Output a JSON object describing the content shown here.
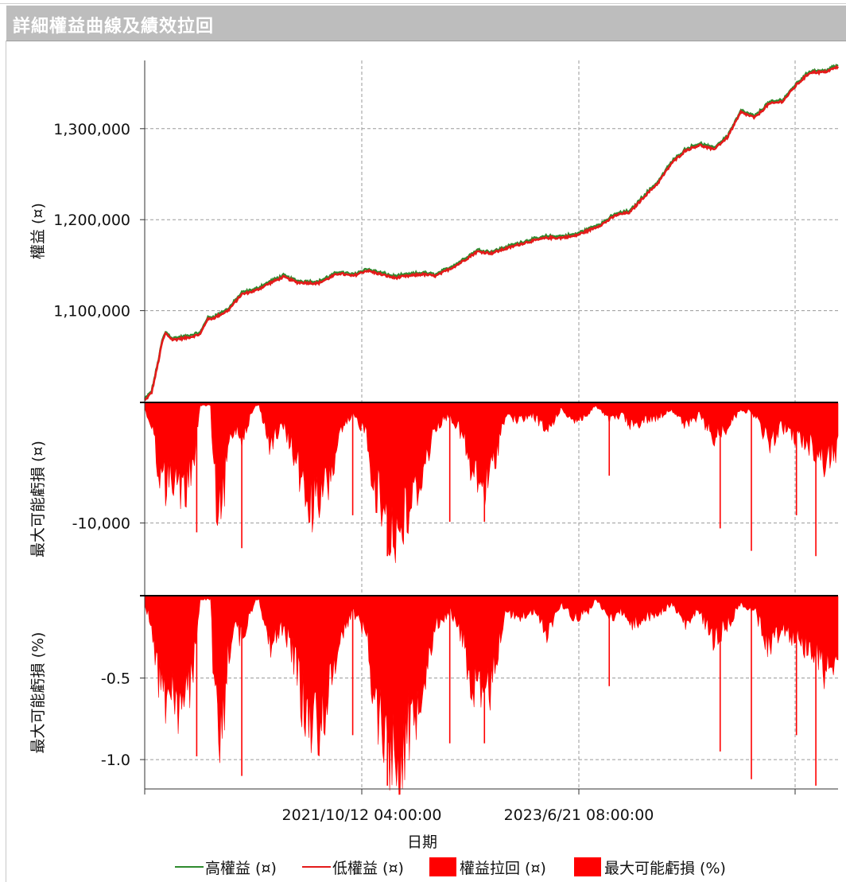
{
  "window": {
    "title": "詳細權益曲線及績效拉回"
  },
  "chart_data": {
    "type": "line",
    "xlabel": "日期",
    "x_ticks": [
      "2021/10/12 04:00:00",
      "2023/6/21 08:00:00"
    ],
    "panels": [
      {
        "id": "equity",
        "type": "line",
        "ylabel": "權益 (¤)",
        "yticks": [
          "1,100,000",
          "1,200,000",
          "1,300,000"
        ],
        "ytick_values": [
          1100000,
          1200000,
          1300000
        ],
        "ylim": [
          1000000,
          1375000
        ],
        "series": [
          {
            "name": "高權益 (¤)",
            "color": "#2e8b2e"
          },
          {
            "name": "低權益 (¤)",
            "color": "#e41a1a"
          }
        ],
        "x": [
          0,
          0.01,
          0.02,
          0.025,
          0.03,
          0.04,
          0.06,
          0.08,
          0.09,
          0.1,
          0.12,
          0.14,
          0.16,
          0.18,
          0.2,
          0.22,
          0.25,
          0.28,
          0.3,
          0.32,
          0.34,
          0.36,
          0.38,
          0.4,
          0.42,
          0.45,
          0.48,
          0.5,
          0.52,
          0.55,
          0.58,
          0.6,
          0.62,
          0.64,
          0.66,
          0.68,
          0.7,
          0.72,
          0.74,
          0.76,
          0.78,
          0.8,
          0.82,
          0.84,
          0.86,
          0.88,
          0.9,
          0.92,
          0.94,
          0.96,
          0.98,
          1.0
        ],
        "values": [
          1001000,
          1010000,
          1045000,
          1065000,
          1075000,
          1068000,
          1070000,
          1074000,
          1090000,
          1092000,
          1100000,
          1118000,
          1122000,
          1130000,
          1137000,
          1131000,
          1130000,
          1141000,
          1138000,
          1144000,
          1140000,
          1136000,
          1138000,
          1140000,
          1138000,
          1150000,
          1165000,
          1163000,
          1168000,
          1175000,
          1180000,
          1180000,
          1182000,
          1188000,
          1195000,
          1205000,
          1208000,
          1225000,
          1240000,
          1262000,
          1276000,
          1282000,
          1277000,
          1290000,
          1318000,
          1312000,
          1327000,
          1330000,
          1348000,
          1362000,
          1362000,
          1368000
        ]
      },
      {
        "id": "drawdown-abs",
        "type": "area",
        "ylabel": "最大可能虧損 (¤)",
        "yticks": [
          "-10,000"
        ],
        "ytick_values": [
          -10000
        ],
        "ylim": [
          -16000,
          0
        ],
        "color": "#ff0000"
      },
      {
        "id": "drawdown-pct",
        "type": "area",
        "ylabel": "最大可能虧損 (%)",
        "yticks": [
          "-0.5",
          "-1.0"
        ],
        "ytick_values": [
          -0.5,
          -1.0
        ],
        "ylim": [
          -1.18,
          0
        ],
        "color": "#ff0000"
      }
    ],
    "drawdown_profile": {
      "x": [
        0,
        0.01,
        0.02,
        0.03,
        0.04,
        0.05,
        0.06,
        0.07,
        0.08,
        0.095,
        0.1,
        0.11,
        0.12,
        0.13,
        0.14,
        0.15,
        0.16,
        0.165,
        0.18,
        0.2,
        0.22,
        0.23,
        0.25,
        0.27,
        0.28,
        0.3,
        0.32,
        0.33,
        0.35,
        0.36,
        0.38,
        0.39,
        0.4,
        0.41,
        0.42,
        0.44,
        0.46,
        0.47,
        0.49,
        0.5,
        0.52,
        0.54,
        0.56,
        0.58,
        0.6,
        0.62,
        0.64,
        0.65,
        0.67,
        0.69,
        0.7,
        0.72,
        0.74,
        0.76,
        0.78,
        0.8,
        0.82,
        0.84,
        0.86,
        0.88,
        0.9,
        0.92,
        0.94,
        0.96,
        0.98,
        1.0
      ],
      "pct": [
        -0.05,
        -0.2,
        -0.55,
        -0.7,
        -0.6,
        -0.8,
        -0.75,
        -0.5,
        -0.02,
        -0.02,
        -0.7,
        -1.05,
        -0.4,
        -0.2,
        -0.3,
        -0.15,
        -0.02,
        -0.02,
        -0.35,
        -0.2,
        -0.5,
        -0.8,
        -0.9,
        -0.6,
        -0.3,
        -0.1,
        -0.25,
        -0.7,
        -1.0,
        -1.15,
        -0.95,
        -0.8,
        -0.6,
        -0.4,
        -0.2,
        -0.1,
        -0.3,
        -0.6,
        -0.75,
        -0.6,
        -0.1,
        -0.15,
        -0.1,
        -0.25,
        -0.05,
        -0.15,
        -0.1,
        -0.02,
        -0.15,
        -0.1,
        -0.2,
        -0.15,
        -0.12,
        -0.05,
        -0.2,
        -0.1,
        -0.3,
        -0.2,
        -0.05,
        -0.1,
        -0.35,
        -0.2,
        -0.3,
        -0.35,
        -0.5,
        -0.4
      ],
      "spikes": [
        {
          "x": 0.075,
          "pct": -0.98
        },
        {
          "x": 0.14,
          "pct": -1.1
        },
        {
          "x": 0.3,
          "pct": -0.85
        },
        {
          "x": 0.35,
          "pct": -1.16
        },
        {
          "x": 0.44,
          "pct": -0.9
        },
        {
          "x": 0.49,
          "pct": -0.9
        },
        {
          "x": 0.67,
          "pct": -0.55
        },
        {
          "x": 0.83,
          "pct": -0.95
        },
        {
          "x": 0.875,
          "pct": -1.12
        },
        {
          "x": 0.94,
          "pct": -0.85
        },
        {
          "x": 0.968,
          "pct": -1.16
        }
      ]
    },
    "legend": [
      {
        "label": "高權益 (¤)",
        "kind": "line",
        "color": "#2e8b2e"
      },
      {
        "label": "低權益 (¤)",
        "kind": "line",
        "color": "#e41a1a"
      },
      {
        "label": "權益拉回 (¤)",
        "kind": "box",
        "color": "#ff0000"
      },
      {
        "label": "最大可能虧損 (%)",
        "kind": "box",
        "color": "#ff0000"
      }
    ],
    "grid": true,
    "legend_position": "bottom"
  }
}
